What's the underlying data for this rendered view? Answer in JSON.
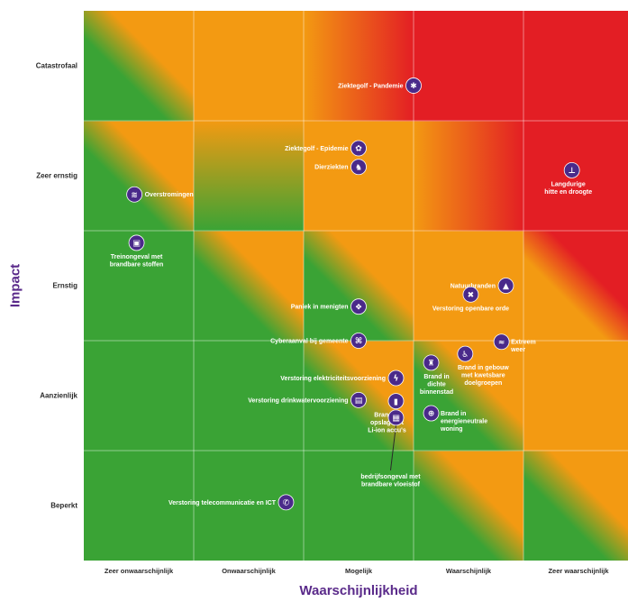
{
  "chart_data": {
    "type": "scatter",
    "title": "",
    "xlabel": "Waarschijnlijkheid",
    "ylabel": "Impact",
    "x_categories": [
      "Zeer onwaarschijnlijk",
      "Onwaarschijnlijk",
      "Mogelijk",
      "Waarschijnlijk",
      "Zeer waarschijnlijk"
    ],
    "y_categories": [
      "Beperkt",
      "Aanzienlijk",
      "Ernstig",
      "Zeer ernstig",
      "Catastrofaal"
    ],
    "xlim": [
      0,
      5
    ],
    "ylim": [
      0,
      5
    ],
    "grid": true,
    "colors": {
      "green": "#3aa335",
      "orange": "#f39a12",
      "red": "#e31e24",
      "marker": "#4a2a8a"
    },
    "points": [
      {
        "name": "Ziektegolf - Pandemie",
        "lines": [
          "Ziektegolf - Pandemie"
        ],
        "x": 3.0,
        "y": 4.32,
        "icon": "virus-icon",
        "glyph": "✱"
      },
      {
        "name": "Ziektegolf - Epidemie",
        "lines": [
          "Ziektegolf - Epidemie"
        ],
        "x": 2.5,
        "y": 3.75,
        "icon": "bacteria-icon",
        "glyph": "✿"
      },
      {
        "name": "Dierziekten",
        "lines": [
          "Dierziekten"
        ],
        "x": 2.5,
        "y": 3.58,
        "icon": "animal-icon",
        "glyph": "♞"
      },
      {
        "name": "Langdurige hitte en droogte",
        "lines": [
          "Langdurige",
          "hitte en droogte"
        ],
        "x": 4.44,
        "y": 3.55,
        "icon": "thermometer-icon",
        "glyph": "⊥"
      },
      {
        "name": "Overstromingen",
        "lines": [
          "Overstromingen"
        ],
        "x": 0.46,
        "y": 3.33,
        "icon": "flood-icon",
        "glyph": "≋"
      },
      {
        "name": "Treinongeval met brandbare stoffen",
        "lines": [
          "Treinongeval met",
          "brandbare stoffen"
        ],
        "x": 0.48,
        "y": 2.89,
        "icon": "train-icon",
        "glyph": "▣"
      },
      {
        "name": "Natuurbranden",
        "lines": [
          "Natuurbranden"
        ],
        "x": 3.84,
        "y": 2.5,
        "icon": "fire-icon",
        "glyph": "▲"
      },
      {
        "name": "Verstoring openbare orde",
        "lines": [
          "Verstoring openbare orde"
        ],
        "x": 3.52,
        "y": 2.42,
        "icon": "crowd-icon",
        "glyph": "✖"
      },
      {
        "name": "Paniek in menigten",
        "lines": [
          "Paniek in menigten"
        ],
        "x": 2.5,
        "y": 2.31,
        "icon": "crowd-panic-icon",
        "glyph": "❖"
      },
      {
        "name": "Cyberaanval bij gemeente",
        "lines": [
          "Cyberaanval bij gemeente"
        ],
        "x": 2.5,
        "y": 2.0,
        "icon": "cyber-icon",
        "glyph": "⌘"
      },
      {
        "name": "Extreem weer",
        "lines": [
          "Extreem",
          "weer"
        ],
        "x": 3.8,
        "y": 1.99,
        "icon": "storm-icon",
        "glyph": "≈"
      },
      {
        "name": "Brand in gebouw met kwetsbare doelgroepen",
        "lines": [
          "Brand in gebouw",
          "met kwetsbare",
          "doelgroepen"
        ],
        "x": 3.47,
        "y": 1.88,
        "icon": "wheelchair-icon",
        "glyph": "♿"
      },
      {
        "name": "Brand in dichte binnenstad",
        "lines": [
          "Brand in",
          "dichte",
          "binnenstad"
        ],
        "x": 3.16,
        "y": 1.8,
        "icon": "building-icon",
        "glyph": "♜"
      },
      {
        "name": "Verstoring elektriciteitsvoorziening",
        "lines": [
          "Verstoring elektriciteitsvoorziening"
        ],
        "x": 2.84,
        "y": 1.66,
        "icon": "lightning-icon",
        "glyph": "ϟ"
      },
      {
        "name": "Verstoring drinkwatervoorziening",
        "lines": [
          "Verstoring drinkwatervoorziening"
        ],
        "x": 2.5,
        "y": 1.46,
        "icon": "water-tap-icon",
        "glyph": "▤"
      },
      {
        "name": "Brand in opslag met Li-ion accu's",
        "lines": [
          "Brand in",
          "opslag met",
          "Li-ion accu's"
        ],
        "x": 2.84,
        "y": 1.45,
        "icon": "battery-icon",
        "glyph": "▮"
      },
      {
        "name": "Brand in energieneutrale woning",
        "lines": [
          "Brand in",
          "energieneutrale",
          "woning"
        ],
        "x": 3.16,
        "y": 1.34,
        "icon": "solar-panel-icon",
        "glyph": "⊕"
      },
      {
        "name": "bedrijfsongeval met brandbare vloeistof",
        "lines": [
          "bedrijfsongeval met",
          "brandbare vloeistof"
        ],
        "x": 2.84,
        "y": 1.3,
        "icon": "factory-icon",
        "glyph": "▦"
      },
      {
        "name": "Verstoring telecommunicatie en ICT",
        "lines": [
          "Verstoring telecommunicatie en ICT"
        ],
        "x": 1.84,
        "y": 0.53,
        "icon": "phone-icon",
        "glyph": "✆"
      }
    ]
  }
}
